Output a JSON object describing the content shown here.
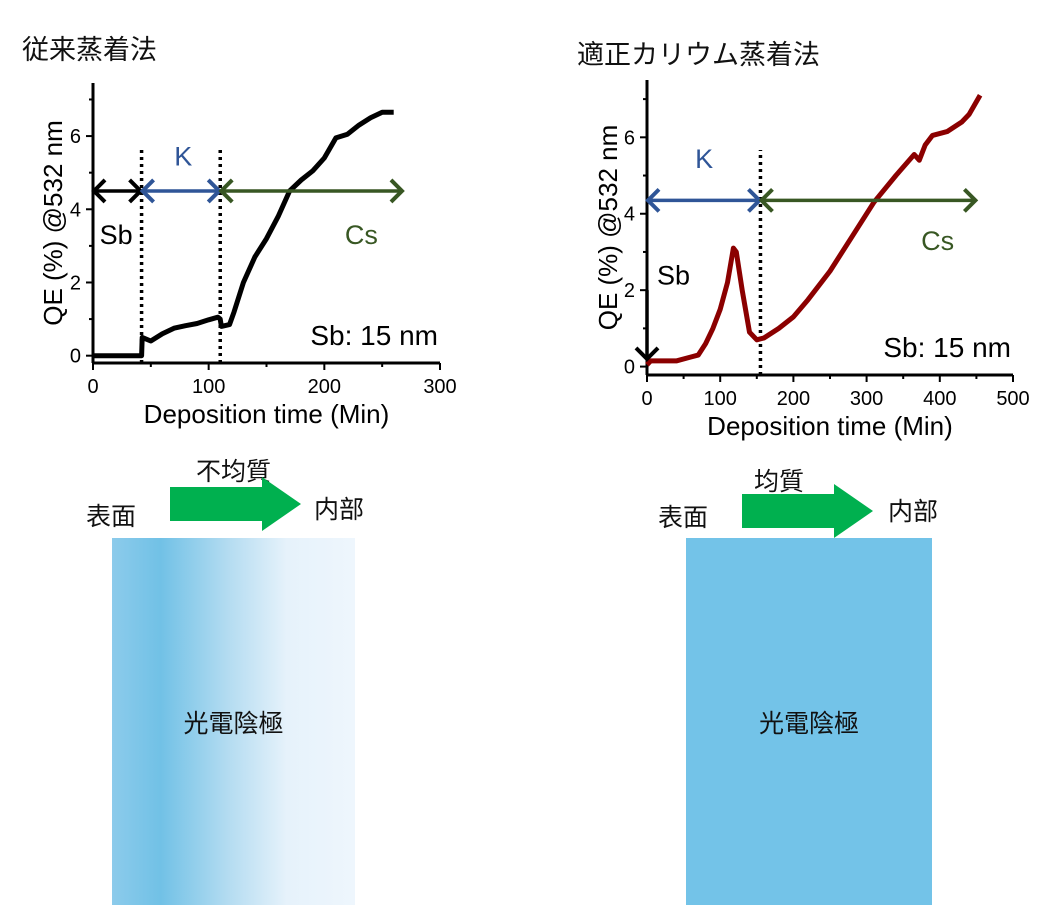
{
  "left_panel": {
    "title": "従来蒸着法",
    "gradient_label": "不均質",
    "surface_label": "表面",
    "interior_label": "内部",
    "box_label": "光電陰極"
  },
  "right_panel": {
    "title": "適正カリウム蒸着法",
    "gradient_label": "均質",
    "surface_label": "表面",
    "interior_label": "内部",
    "box_label": "光電陰極"
  },
  "colors": {
    "arrow_green": "#00b04f",
    "photocathode_blue": "#73c3e8",
    "K": "#2f5597",
    "Cs": "#385723",
    "Sb": "#000000",
    "left_line": "#000000",
    "right_line": "#8b0000"
  },
  "chart_data": [
    {
      "type": "line",
      "xlabel": "Deposition time (Min)",
      "ylabel": "QE (%) @532 nm",
      "xlim": [
        0,
        300
      ],
      "ylim": [
        -0.2,
        7.45
      ],
      "xticks": [
        "0",
        "100",
        "200",
        "300"
      ],
      "xtick_values": [
        0,
        100,
        200,
        300
      ],
      "yticks": [
        "0",
        "2",
        "4",
        "6"
      ],
      "ytick_values": [
        0,
        2,
        4,
        6
      ],
      "annotation": "Sb: 15 nm",
      "series": [
        {
          "name": "QE",
          "color": "#000000",
          "x": [
            0,
            42,
            42.5,
            50,
            60,
            70,
            80,
            90,
            100,
            108,
            110,
            111,
            118,
            122,
            130,
            140,
            150,
            160,
            170,
            180,
            190,
            200,
            210,
            220,
            230,
            240,
            250,
            260
          ],
          "y": [
            0,
            0,
            0.5,
            0.4,
            0.6,
            0.75,
            0.82,
            0.88,
            0.98,
            1.05,
            1.0,
            0.8,
            0.85,
            1.2,
            2.0,
            2.7,
            3.2,
            3.8,
            4.5,
            4.8,
            5.05,
            5.4,
            5.95,
            6.05,
            6.3,
            6.5,
            6.65,
            6.65
          ]
        }
      ],
      "dividers": [
        42,
        110
      ],
      "phases": [
        {
          "label": "Sb",
          "from": 0,
          "to": 42,
          "y": 4.5,
          "color": "#000000"
        },
        {
          "label": "K",
          "from": 42,
          "to": 110,
          "y": 4.5,
          "color": "#2f5597"
        },
        {
          "label": "Cs",
          "from": 110,
          "to": 268,
          "y": 4.5,
          "color": "#385723"
        }
      ]
    },
    {
      "type": "line",
      "xlabel": "Deposition time (Min)",
      "ylabel": "QE (%) @532 nm",
      "xlim": [
        0,
        500
      ],
      "ylim": [
        -0.22,
        7.5
      ],
      "xticks": [
        "0",
        "100",
        "200",
        "300",
        "400",
        "500"
      ],
      "xtick_values": [
        0,
        100,
        200,
        300,
        400,
        500
      ],
      "yticks": [
        "0",
        "2",
        "4",
        "6"
      ],
      "ytick_values": [
        0,
        2,
        4,
        6
      ],
      "annotation": "Sb: 15 nm",
      "series": [
        {
          "name": "QE",
          "color": "#8b0000",
          "x": [
            0,
            5,
            40,
            60,
            70,
            80,
            90,
            100,
            110,
            118,
            122,
            130,
            140,
            150,
            160,
            180,
            200,
            220,
            250,
            280,
            310,
            340,
            365,
            372,
            380,
            390,
            410,
            430,
            440,
            455
          ],
          "y": [
            0.05,
            0.15,
            0.15,
            0.25,
            0.3,
            0.6,
            1.0,
            1.5,
            2.2,
            3.1,
            3.0,
            2.0,
            0.9,
            0.7,
            0.75,
            1.0,
            1.3,
            1.75,
            2.5,
            3.4,
            4.3,
            5.0,
            5.55,
            5.4,
            5.8,
            6.05,
            6.15,
            6.4,
            6.6,
            7.1
          ]
        }
      ],
      "dividers": [
        155
      ],
      "phases": [
        {
          "label": "Sb",
          "from": 2,
          "to": 0.2,
          "vertical": true,
          "x": 0,
          "color": "#000000"
        },
        {
          "label": "K",
          "from": 0,
          "to": 155,
          "y": 4.35,
          "color": "#2f5597"
        },
        {
          "label": "Cs",
          "from": 155,
          "to": 450,
          "y": 4.35,
          "color": "#385723"
        }
      ]
    }
  ]
}
